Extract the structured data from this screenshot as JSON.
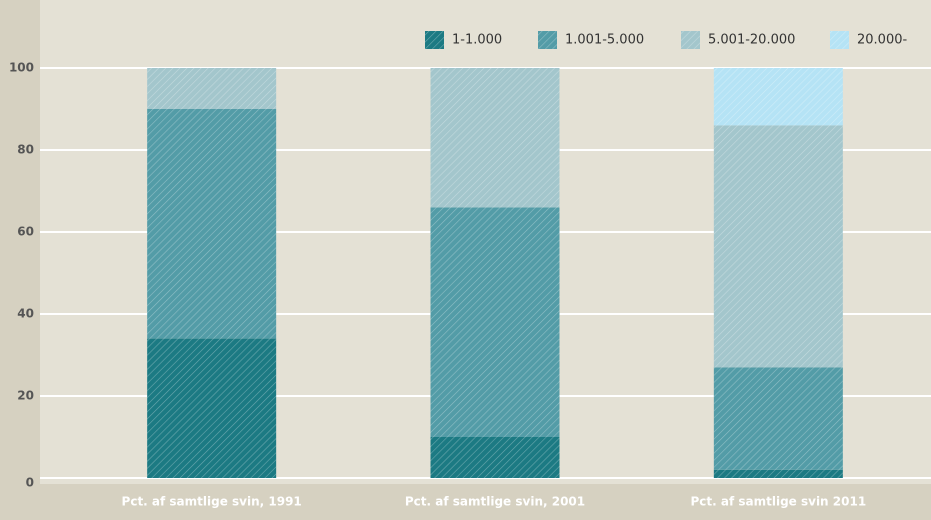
{
  "chart_data": {
    "type": "stacked_bar",
    "categories": [
      "Pct. af samtlige svin, 1991",
      "Pct. af samtlige svin, 2001",
      "Pct. af samtlige svin 2011"
    ],
    "series": [
      {
        "name": "1-1.000",
        "color": "#1c7a83",
        "values": [
          34,
          10,
          2
        ]
      },
      {
        "name": "1.001-5.000",
        "color": "#539ca7",
        "values": [
          56,
          56,
          25
        ]
      },
      {
        "name": "5.001-20.000",
        "color": "#a3c6cc",
        "values": [
          10,
          34,
          59
        ]
      },
      {
        "name": "20.000-",
        "color": "#b5e3f5",
        "values": [
          0,
          0,
          14
        ]
      }
    ],
    "ylim": [
      0,
      100
    ],
    "yticks": [
      0,
      20,
      40,
      60,
      80,
      100
    ],
    "grid": true,
    "legend": "top"
  }
}
